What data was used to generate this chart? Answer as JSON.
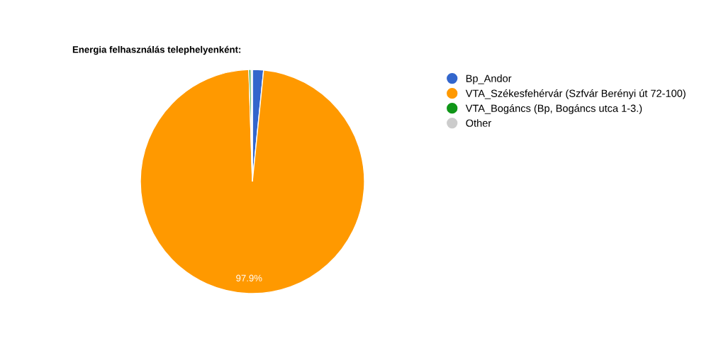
{
  "chart_data": {
    "type": "pie",
    "title": "Energia felhasználás telephelyenként:",
    "categories": [
      "Bp_Andor",
      "VTA_Székesfehérvár (Szfvár Berényi út 72-100)",
      "VTA_Bogáncs (Bp, Bogáncs utca 1-3.)",
      "Other"
    ],
    "values": [
      1.6,
      97.9,
      0.3,
      0.2
    ],
    "colors": [
      "#3366cc",
      "#ff9900",
      "#109618",
      "#cccccc"
    ],
    "value_labels": [
      null,
      "97.9%",
      null,
      null
    ],
    "legend": "right"
  }
}
